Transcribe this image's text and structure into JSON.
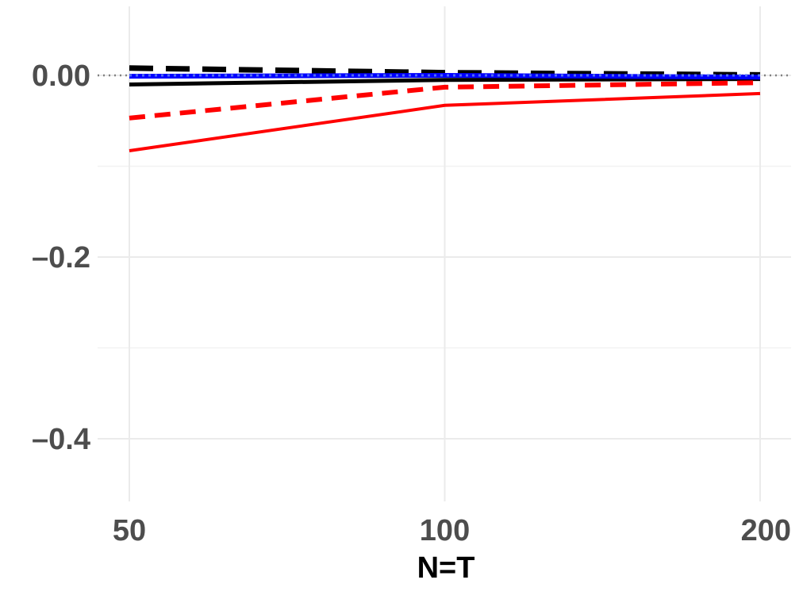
{
  "chart_data": {
    "type": "line",
    "title": "",
    "xlabel": "N=T",
    "ylabel": "",
    "x": [
      50,
      100,
      200
    ],
    "x_ticks": [
      50,
      100,
      200
    ],
    "x_tick_labels": [
      "50",
      "100",
      "200"
    ],
    "y_ticks": [
      0.0,
      -0.2,
      -0.4
    ],
    "y_tick_labels": [
      "0.00",
      "–0.2",
      "–0.4"
    ],
    "xlim": [
      44.8,
      205.3
    ],
    "ylim": [
      -0.468,
      0.075
    ],
    "grid": true,
    "legend": "none",
    "reference_line": {
      "y": 0,
      "style": "dotted",
      "color": "#808080"
    },
    "series": [
      {
        "color": "#000000",
        "dash": "long-dash",
        "width": 7,
        "values": [
          0.008,
          0.003,
          0.0005
        ]
      },
      {
        "color": "#000000",
        "dash": "solid",
        "width": 5,
        "values": [
          -0.01,
          -0.005,
          -0.004
        ]
      },
      {
        "color": "#0000ff",
        "dash": "solid",
        "width": 6,
        "values": [
          -0.001,
          0.0,
          -0.002
        ]
      },
      {
        "color": "#4f6df5",
        "dash": "dotted",
        "width": 3,
        "values": [
          0.0,
          0.0,
          0.0
        ]
      },
      {
        "color": "#ff0000",
        "dash": "dashed",
        "width": 6,
        "values": [
          -0.047,
          -0.013,
          -0.008
        ]
      },
      {
        "color": "#ff0000",
        "dash": "solid",
        "width": 4,
        "values": [
          -0.083,
          -0.033,
          -0.02
        ]
      }
    ]
  }
}
